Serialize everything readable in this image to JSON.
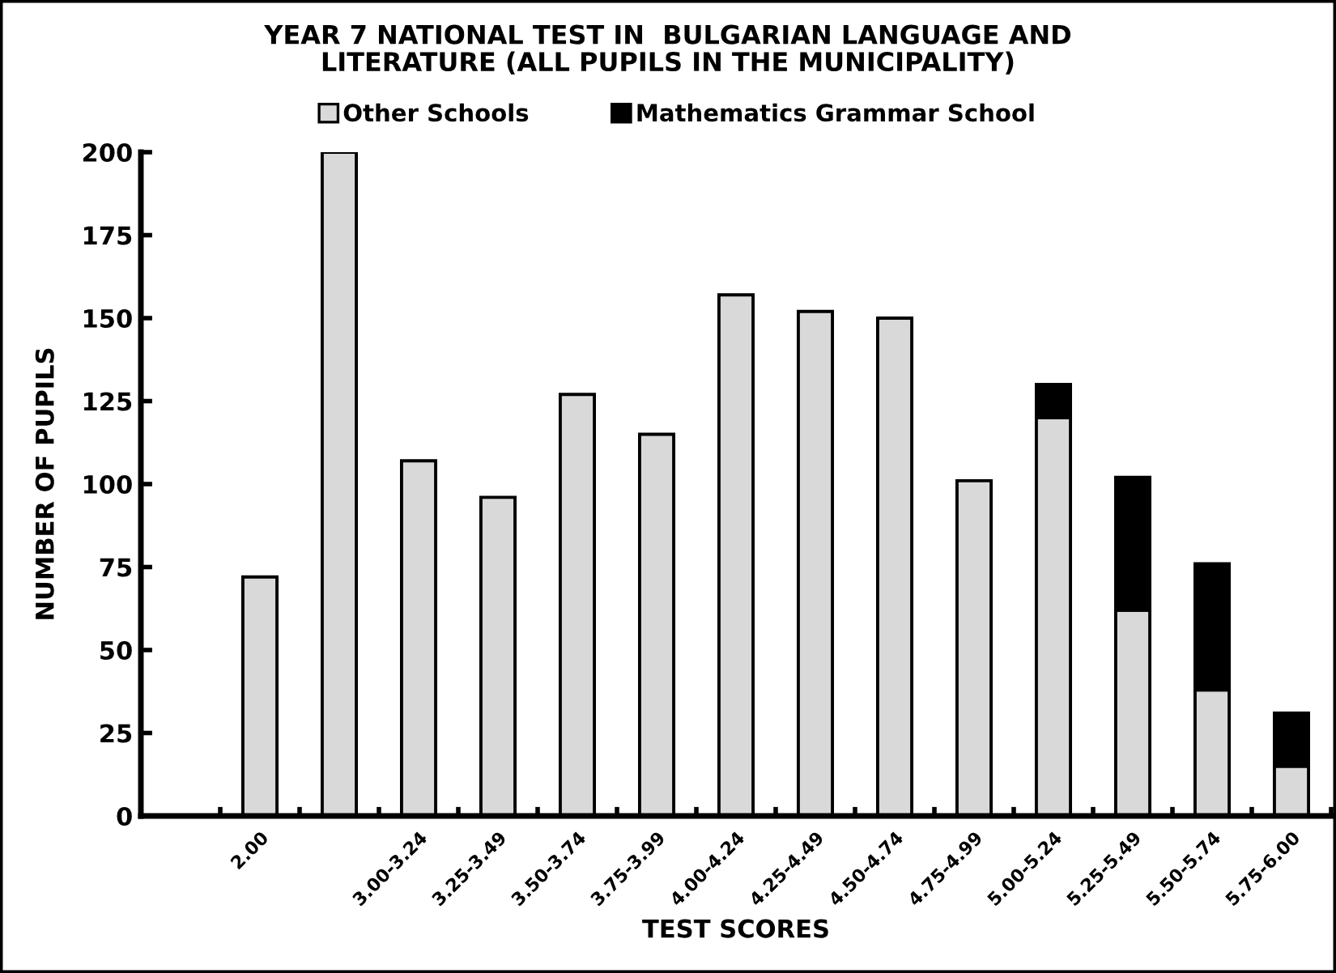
{
  "chart_data": {
    "type": "bar",
    "title": "YEAR 7 NATIONAL TEST IN  BULGARIAN LANGUAGE AND\nLITERATURE (ALL PUPILS IN THE MUNICIPALITY)",
    "xlabel": "TEST SCORES",
    "ylabel": "NUMBER OF PUPILS",
    "categories": [
      null,
      "2.00",
      null,
      "3.00-3.24",
      "3.25-3.49",
      "3.50-3.74",
      "3.75-3.99",
      "4.00-4.24",
      "4.25-4.49",
      "4.50-4.74",
      "4.75-4.99",
      "5.00-5.24",
      "5.25-5.49",
      "5.50-5.74",
      "5.75-6.00"
    ],
    "series": [
      {
        "name": "Other Schools",
        "color": "#d9d9d9",
        "values": [
          null,
          72,
          200,
          107,
          96,
          127,
          115,
          157,
          152,
          150,
          101,
          120,
          62,
          38,
          15
        ]
      },
      {
        "name": "Mathematics Grammar School",
        "color": "#000000",
        "values": [
          null,
          null,
          null,
          null,
          null,
          null,
          null,
          null,
          null,
          null,
          null,
          10,
          40,
          38,
          16
        ]
      }
    ],
    "stacked": true,
    "ylim": [
      0,
      200
    ],
    "yticks": [
      0,
      25,
      50,
      75,
      100,
      125,
      150,
      175,
      200
    ],
    "grid": false,
    "legend": "top"
  }
}
